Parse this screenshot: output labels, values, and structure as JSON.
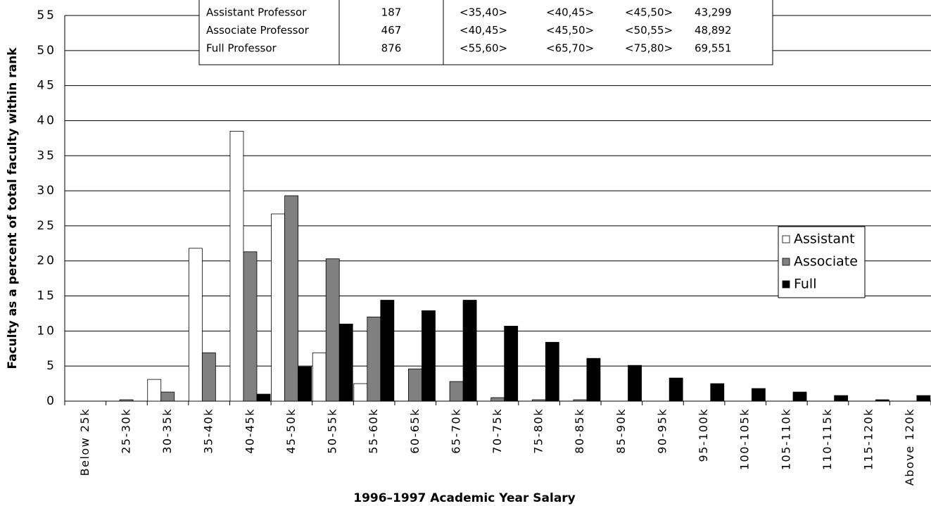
{
  "chart_data": {
    "type": "bar",
    "x_label": "1996–1997 Academic Year Salary",
    "y_label": "Faculty as a percent of total faculty within rank",
    "categories": [
      "Below 25k",
      "25-30k",
      "30-35k",
      "35-40k",
      "40-45k",
      "45-50k",
      "50-55k",
      "55-60k",
      "60-65k",
      "65-70k",
      "70-75k",
      "75-80k",
      "80-85k",
      "85-90k",
      "90-95k",
      "95-100k",
      "100-105k",
      "105-110k",
      "110-115k",
      "115-120k",
      "Above 120k"
    ],
    "series": [
      {
        "name": "Assistant",
        "color": "#ffffff",
        "values": [
          0,
          0,
          3.1,
          21.8,
          38.5,
          26.7,
          6.9,
          2.5,
          0,
          0,
          0,
          0,
          0,
          0,
          0,
          0,
          0,
          0,
          0,
          0,
          0
        ]
      },
      {
        "name": "Associate",
        "color": "#808080",
        "values": [
          0,
          0.2,
          1.3,
          6.9,
          21.3,
          29.3,
          20.3,
          12.0,
          4.6,
          2.8,
          0.5,
          0.2,
          0.2,
          0,
          0,
          0,
          0,
          0,
          0,
          0,
          0
        ]
      },
      {
        "name": "Full",
        "color": "#000000",
        "values": [
          0,
          0,
          0,
          0,
          1.0,
          4.9,
          11.0,
          14.4,
          12.9,
          14.4,
          10.7,
          8.4,
          6.1,
          5.1,
          3.3,
          2.5,
          1.8,
          1.3,
          0.8,
          0.2,
          0.8
        ]
      }
    ],
    "ylim": [
      0,
      55
    ],
    "yticks": [
      0,
      5,
      10,
      15,
      20,
      25,
      30,
      35,
      40,
      45,
      50,
      55
    ],
    "grid": true
  },
  "table": {
    "rows": [
      [
        "Assistant Professor",
        "187",
        "<35,40>",
        "<40,45>",
        "<45,50>",
        "43,299"
      ],
      [
        "Associate Professor",
        "467",
        "<40,45>",
        "<45,50>",
        "<50,55>",
        "48,892"
      ],
      [
        "Full Professor",
        "876",
        "<55,60>",
        "<65,70>",
        "<75,80>",
        "69,551"
      ]
    ]
  }
}
